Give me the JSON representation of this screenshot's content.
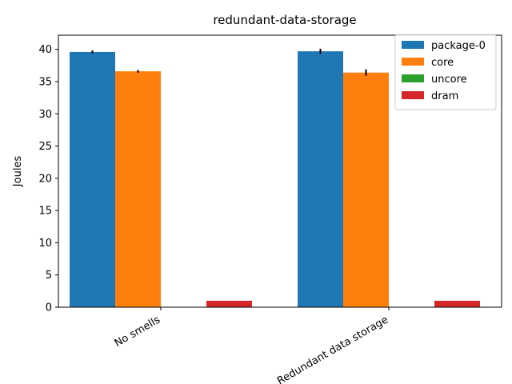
{
  "chart_data": {
    "type": "bar",
    "title": "redundant-data-storage",
    "xlabel": "",
    "ylabel": "Joules",
    "categories": [
      "No smells",
      "Redundant data storage"
    ],
    "ylim": [
      0,
      42.2
    ],
    "yticks": [
      0,
      5,
      10,
      15,
      20,
      25,
      30,
      35,
      40
    ],
    "grid": false,
    "legend_position": "top-right",
    "series": [
      {
        "name": "package-0",
        "color": "#1f77b4",
        "values": [
          39.6,
          39.7
        ],
        "errors": [
          0.25,
          0.4
        ]
      },
      {
        "name": "core",
        "color": "#ff7f0e",
        "values": [
          36.6,
          36.4
        ],
        "errors": [
          0.2,
          0.5
        ]
      },
      {
        "name": "uncore",
        "color": "#2ca02c",
        "values": [
          0,
          0
        ],
        "errors": [
          0,
          0
        ]
      },
      {
        "name": "dram",
        "color": "#d62728",
        "values": [
          1.0,
          1.0
        ],
        "errors": [
          0,
          0
        ]
      }
    ]
  }
}
